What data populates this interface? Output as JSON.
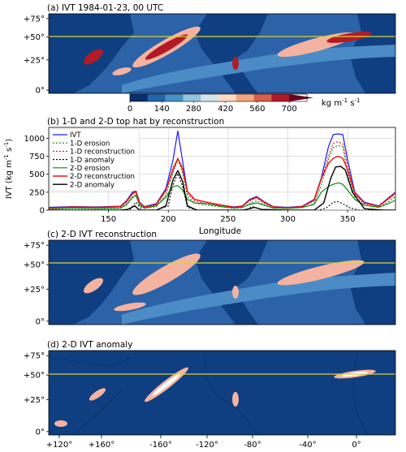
{
  "colors": {
    "ocean": "#2b62a8",
    "ocean_light": "#4c8cc6",
    "land": "#0f3f80",
    "highlight": "#f4b3a0",
    "strong": "#b51a24",
    "latline": "#d8d23a",
    "ivt": "#1a1aff",
    "red": "#ee1111",
    "green": "#118811",
    "black": "#000000"
  },
  "panels": {
    "a": {
      "title": "(a) IVT 1984-01-23, 00 UTC"
    },
    "b": {
      "title": "(b) 1-D and 2-D top hat by reconstruction"
    },
    "c": {
      "title": "(c) 2-D IVT reconstruction"
    },
    "d": {
      "title": "(d) 2-D IVT anomaly"
    }
  },
  "lat_ticks": [
    "+75°",
    "+50°",
    "+25°",
    "0°"
  ],
  "lon_ticks": [
    "+120°",
    "+160°",
    "-160°",
    "-120°",
    "-80°",
    "-40°",
    "0°"
  ],
  "colorbar": {
    "ticks": [
      "0",
      "140",
      "280",
      "420",
      "560",
      "700"
    ],
    "unit_main": "kg m",
    "unit_sup1": "-1",
    "unit_mid": " s",
    "unit_sup2": "-1",
    "colors": [
      "#08306b",
      "#2166ac",
      "#4393c3",
      "#92c5de",
      "#d1e5f0",
      "#fddbc7",
      "#f4a582",
      "#d6604d",
      "#b2182b",
      "#67001f"
    ]
  },
  "chart_data": {
    "type": "line",
    "xlabel": "Longitude",
    "ylabel": "IVT (kg m",
    "ylabel_sup1": "-1",
    "ylabel_mid": " s",
    "ylabel_sup2": "-1",
    "ylabel_end": ")",
    "xlim": [
      100,
      390
    ],
    "ylim": [
      0,
      1150
    ],
    "xticks": [
      150,
      200,
      250,
      300,
      350
    ],
    "yticks": [
      0,
      250,
      500,
      750,
      1000
    ],
    "legend_position": "top-left",
    "series": [
      {
        "name": "IVT",
        "color": "#1a1aff",
        "dash": "",
        "width": 1.2,
        "x": [
          100,
          120,
          140,
          160,
          165,
          170,
          173,
          176,
          180,
          190,
          198,
          204,
          208,
          212,
          216,
          222,
          232,
          245,
          255,
          262,
          268,
          274,
          280,
          288,
          300,
          312,
          322,
          328,
          334,
          338,
          342,
          346,
          350,
          356,
          364,
          376,
          384,
          390
        ],
        "y": [
          40,
          50,
          45,
          55,
          130,
          250,
          270,
          110,
          50,
          90,
          300,
          700,
          1100,
          680,
          260,
          150,
          110,
          70,
          45,
          60,
          150,
          190,
          120,
          50,
          40,
          55,
          150,
          450,
          880,
          1050,
          1060,
          1050,
          700,
          250,
          110,
          60,
          170,
          250
        ]
      },
      {
        "name": "1-D erosion",
        "color": "#118811",
        "dash": "2,2",
        "width": 1.1,
        "x": [
          100,
          120,
          140,
          160,
          165,
          170,
          173,
          176,
          180,
          190,
          198,
          204,
          208,
          212,
          216,
          222,
          232,
          245,
          255,
          262,
          268,
          274,
          280,
          288,
          300,
          312,
          322,
          328,
          334,
          338,
          342,
          346,
          350,
          356,
          364,
          376,
          384,
          390
        ],
        "y": [
          15,
          25,
          20,
          25,
          70,
          170,
          200,
          60,
          25,
          50,
          210,
          520,
          700,
          520,
          190,
          100,
          70,
          45,
          25,
          35,
          90,
          130,
          80,
          30,
          25,
          35,
          90,
          350,
          700,
          870,
          900,
          880,
          520,
          180,
          70,
          40,
          110,
          190
        ]
      },
      {
        "name": "1-D reconstruction",
        "color": "#ee1111",
        "dash": "2,2",
        "width": 1.1,
        "x": [
          100,
          120,
          140,
          160,
          165,
          170,
          173,
          176,
          180,
          190,
          198,
          204,
          208,
          212,
          216,
          222,
          232,
          245,
          255,
          262,
          268,
          274,
          280,
          288,
          300,
          312,
          322,
          328,
          334,
          338,
          342,
          346,
          350,
          356,
          364,
          376,
          384,
          390
        ],
        "y": [
          30,
          45,
          40,
          45,
          110,
          220,
          250,
          90,
          40,
          70,
          260,
          600,
          710,
          600,
          230,
          130,
          90,
          60,
          35,
          50,
          130,
          170,
          100,
          40,
          35,
          45,
          130,
          420,
          750,
          930,
          950,
          920,
          620,
          220,
          90,
          50,
          150,
          230
        ]
      },
      {
        "name": "1-D anomaly",
        "color": "#000000",
        "dash": "2,2",
        "width": 1.1,
        "x": [
          100,
          160,
          168,
          173,
          178,
          190,
          200,
          204,
          208,
          212,
          216,
          224,
          240,
          260,
          266,
          270,
          274,
          280,
          300,
          326,
          332,
          338,
          342,
          346,
          352,
          360,
          380,
          390
        ],
        "y": [
          0,
          0,
          10,
          110,
          0,
          0,
          60,
          350,
          510,
          330,
          40,
          0,
          0,
          0,
          10,
          50,
          30,
          0,
          0,
          0,
          30,
          110,
          120,
          90,
          30,
          0,
          0,
          0
        ]
      },
      {
        "name": "2-D erosion",
        "color": "#118811",
        "dash": "",
        "width": 1.2,
        "x": [
          100,
          120,
          140,
          160,
          165,
          170,
          173,
          176,
          180,
          190,
          198,
          204,
          208,
          212,
          216,
          222,
          232,
          245,
          255,
          262,
          268,
          274,
          280,
          288,
          300,
          312,
          322,
          328,
          334,
          338,
          342,
          346,
          350,
          356,
          364,
          376,
          384,
          390
        ],
        "y": [
          20,
          30,
          25,
          30,
          80,
          180,
          210,
          70,
          30,
          60,
          180,
          330,
          340,
          280,
          150,
          100,
          90,
          50,
          30,
          40,
          80,
          100,
          70,
          30,
          25,
          40,
          80,
          250,
          330,
          360,
          380,
          360,
          280,
          150,
          70,
          40,
          90,
          140
        ]
      },
      {
        "name": "2-D reconstruction",
        "color": "#ee1111",
        "dash": "",
        "width": 1.4,
        "x": [
          100,
          120,
          140,
          160,
          165,
          170,
          173,
          176,
          180,
          190,
          198,
          204,
          208,
          212,
          216,
          222,
          232,
          245,
          255,
          262,
          268,
          274,
          280,
          288,
          300,
          312,
          322,
          328,
          334,
          338,
          342,
          346,
          350,
          356,
          364,
          376,
          384,
          390
        ],
        "y": [
          30,
          45,
          40,
          50,
          120,
          230,
          260,
          100,
          45,
          80,
          280,
          560,
          720,
          570,
          260,
          150,
          110,
          70,
          40,
          55,
          140,
          180,
          110,
          45,
          35,
          50,
          140,
          440,
          650,
          720,
          750,
          720,
          560,
          240,
          100,
          55,
          160,
          240
        ]
      },
      {
        "name": "2-D anomaly",
        "color": "#000000",
        "dash": "",
        "width": 1.4,
        "x": [
          100,
          160,
          166,
          172,
          176,
          190,
          198,
          204,
          208,
          212,
          216,
          224,
          240,
          262,
          268,
          272,
          278,
          300,
          322,
          330,
          336,
          340,
          344,
          348,
          354,
          364,
          380,
          390
        ],
        "y": [
          0,
          0,
          10,
          60,
          0,
          0,
          60,
          420,
          550,
          400,
          60,
          0,
          0,
          0,
          20,
          40,
          10,
          0,
          0,
          100,
          450,
          600,
          610,
          560,
          250,
          20,
          0,
          0
        ]
      }
    ]
  }
}
